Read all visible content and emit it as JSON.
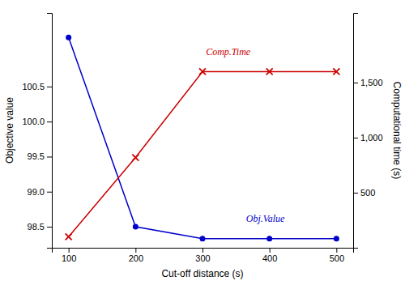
{
  "chart_data": {
    "type": "line",
    "xlabel": "Cut-off distance (s)",
    "ylabel": "Objective value",
    "y2label": "Computational time (s)",
    "x": [
      100,
      200,
      300,
      400,
      500
    ],
    "series": [
      {
        "color": "#0000cc",
        "marker": "circle",
        "values": [
          101.2,
          98.5,
          98.33,
          98.33,
          98.33
        ]
      },
      {
        "color": "#cc0000",
        "marker": "x",
        "axis": "y2",
        "values": [
          100,
          820,
          1600,
          1600,
          1600
        ]
      }
    ],
    "xlim": [
      75,
      525
    ],
    "xticks": [
      100,
      200,
      300,
      400,
      500
    ],
    "ylim": [
      98.2,
      101.55
    ],
    "yticks": [
      98.5,
      {
        "value": 99.0,
        "label": "99.0"
      },
      99.5,
      {
        "value": 100.0,
        "label": "100.0"
      },
      100.5
    ],
    "y2lim": [
      0,
      2133
    ],
    "y2ticks": [
      500,
      {
        "value": 1000,
        "label": "1,000"
      },
      {
        "value": 1500,
        "label": "1,500"
      }
    ],
    "annotations": [
      {
        "text": "Comp.Time",
        "x": 305,
        "y": 100.95,
        "color": "#cc0000"
      },
      {
        "text": "Obj.Value",
        "x": 365,
        "y": 98.57,
        "color": "#0000cc"
      }
    ]
  }
}
